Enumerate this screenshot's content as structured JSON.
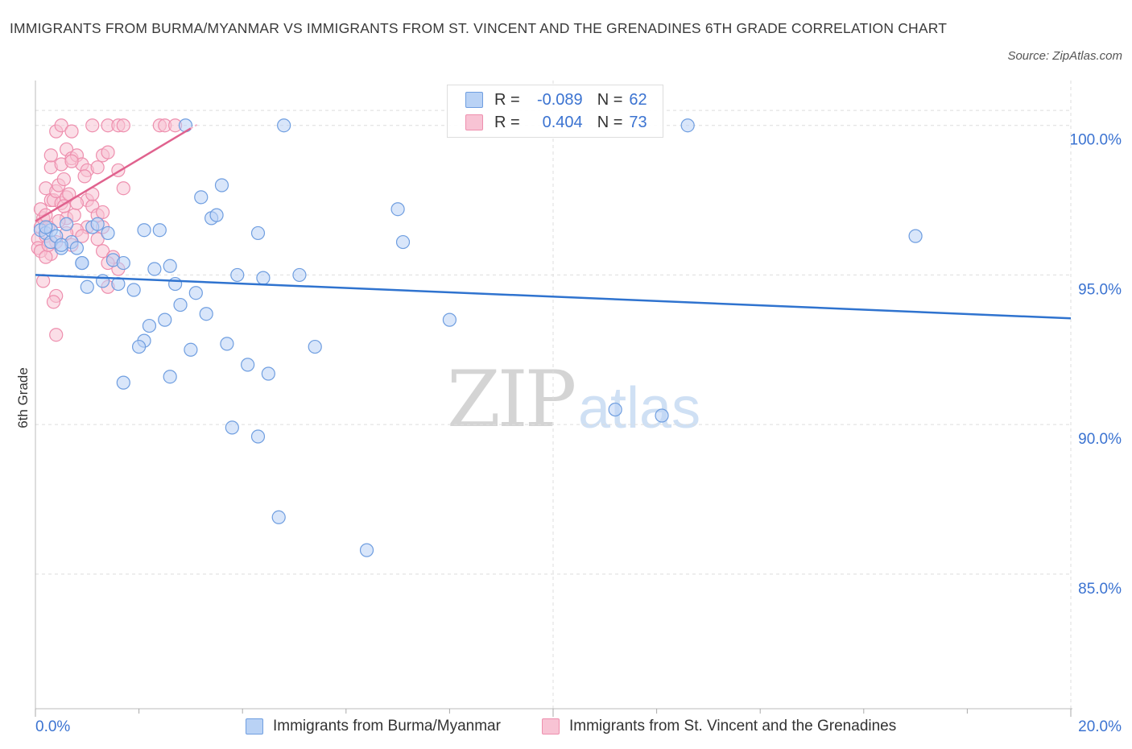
{
  "header": {
    "title": "IMMIGRANTS FROM BURMA/MYANMAR VS IMMIGRANTS FROM ST. VINCENT AND THE GRENADINES 6TH GRADE CORRELATION CHART",
    "source": "Source: ZipAtlas.com"
  },
  "watermark": {
    "zip": "ZIP",
    "atlas": "atlas"
  },
  "legend": {
    "rows": [
      {
        "r_label": "R =",
        "r_value": "-0.089",
        "n_label": "N =",
        "n_value": "62"
      },
      {
        "r_label": "R =",
        "r_value": "0.404",
        "n_label": "N =",
        "n_value": "73"
      }
    ]
  },
  "colors": {
    "blue_fill": "#b9d2f5",
    "blue_stroke": "#6f9ee0",
    "blue_line": "#2f73cf",
    "pink_fill": "#f8c3d4",
    "pink_stroke": "#ee8fae",
    "pink_line": "#e0628e",
    "axis_label": "#3b73d1",
    "grid": "#dddddd"
  },
  "chart_data": {
    "type": "scatter",
    "title": "IMMIGRANTS FROM BURMA/MYANMAR VS IMMIGRANTS FROM ST. VINCENT AND THE GRENADINES 6TH GRADE CORRELATION CHART",
    "ylabel": "6th Grade",
    "xlabel": "",
    "xlim": [
      0,
      20
    ],
    "ylim": [
      80.5,
      101.5
    ],
    "x_tick_labels": [
      "0.0%",
      "20.0%"
    ],
    "y_ticks": [
      85,
      90,
      95,
      100
    ],
    "y_tick_labels": [
      "85.0%",
      "90.0%",
      "95.0%",
      "100.0%"
    ],
    "grid": true,
    "legend_position": "top-center",
    "series": [
      {
        "name": "Immigrants from Burma/Myanmar",
        "color": "#6f9ee0",
        "trend": {
          "x": [
            0.0,
            20.0
          ],
          "y": [
            95.0,
            93.55
          ]
        },
        "points": [
          [
            0.1,
            96.5
          ],
          [
            0.2,
            96.4
          ],
          [
            0.3,
            96.1
          ],
          [
            0.5,
            95.9
          ],
          [
            0.7,
            96.1
          ],
          [
            0.9,
            95.4
          ],
          [
            1.1,
            96.6
          ],
          [
            1.4,
            96.4
          ],
          [
            1.5,
            95.5
          ],
          [
            1.7,
            95.4
          ],
          [
            1.0,
            94.6
          ],
          [
            1.3,
            94.8
          ],
          [
            1.6,
            94.7
          ],
          [
            1.9,
            94.5
          ],
          [
            0.6,
            96.7
          ],
          [
            0.8,
            95.9
          ],
          [
            2.1,
            96.5
          ],
          [
            2.4,
            96.5
          ],
          [
            2.3,
            95.2
          ],
          [
            2.6,
            95.3
          ],
          [
            2.7,
            94.7
          ],
          [
            2.2,
            93.3
          ],
          [
            2.5,
            93.5
          ],
          [
            2.8,
            94.0
          ],
          [
            3.1,
            94.4
          ],
          [
            3.3,
            93.7
          ],
          [
            2.1,
            92.8
          ],
          [
            2.0,
            92.6
          ],
          [
            3.0,
            92.5
          ],
          [
            3.7,
            92.7
          ],
          [
            4.1,
            92.0
          ],
          [
            4.5,
            91.7
          ],
          [
            1.7,
            91.4
          ],
          [
            2.6,
            91.6
          ],
          [
            3.2,
            97.6
          ],
          [
            3.6,
            98.0
          ],
          [
            3.4,
            96.9
          ],
          [
            3.5,
            97.0
          ],
          [
            4.3,
            96.4
          ],
          [
            3.9,
            95.0
          ],
          [
            4.4,
            94.9
          ],
          [
            5.1,
            95.0
          ],
          [
            5.4,
            92.6
          ],
          [
            3.8,
            89.9
          ],
          [
            4.3,
            89.6
          ],
          [
            4.7,
            86.9
          ],
          [
            6.4,
            85.8
          ],
          [
            7.0,
            97.2
          ],
          [
            7.1,
            96.1
          ],
          [
            8.0,
            93.5
          ],
          [
            11.2,
            90.5
          ],
          [
            12.1,
            90.3
          ],
          [
            17.0,
            96.3
          ],
          [
            12.6,
            100.0
          ],
          [
            4.8,
            100.0
          ],
          [
            2.9,
            100.0
          ],
          [
            0.3,
            96.5
          ],
          [
            0.4,
            96.3
          ],
          [
            0.5,
            96.0
          ],
          [
            1.2,
            96.7
          ],
          [
            0.9,
            95.4
          ],
          [
            0.2,
            96.6
          ]
        ]
      },
      {
        "name": "Immigrants from St. Vincent and the Grenadines",
        "color": "#ee8fae",
        "trend": {
          "x": [
            0.0,
            3.0
          ],
          "y": [
            96.8,
            99.9
          ]
        },
        "points": [
          [
            0.05,
            96.2
          ],
          [
            0.1,
            96.6
          ],
          [
            0.15,
            96.9
          ],
          [
            0.05,
            95.9
          ],
          [
            0.2,
            96.3
          ],
          [
            0.25,
            96.6
          ],
          [
            0.1,
            97.2
          ],
          [
            0.3,
            97.5
          ],
          [
            0.2,
            97.9
          ],
          [
            0.35,
            97.5
          ],
          [
            0.4,
            97.8
          ],
          [
            0.5,
            97.4
          ],
          [
            0.45,
            98.0
          ],
          [
            0.55,
            98.2
          ],
          [
            0.6,
            97.6
          ],
          [
            0.3,
            98.6
          ],
          [
            0.5,
            98.7
          ],
          [
            0.6,
            99.2
          ],
          [
            0.7,
            98.9
          ],
          [
            0.4,
            99.8
          ],
          [
            0.5,
            100.0
          ],
          [
            0.7,
            99.8
          ],
          [
            0.8,
            99.0
          ],
          [
            0.9,
            98.7
          ],
          [
            1.0,
            97.5
          ],
          [
            1.1,
            97.3
          ],
          [
            1.2,
            97.0
          ],
          [
            1.1,
            97.7
          ],
          [
            1.0,
            98.5
          ],
          [
            1.2,
            98.6
          ],
          [
            1.3,
            99.0
          ],
          [
            1.4,
            99.1
          ],
          [
            1.1,
            100.0
          ],
          [
            1.4,
            100.0
          ],
          [
            1.6,
            100.0
          ],
          [
            1.7,
            100.0
          ],
          [
            2.4,
            100.0
          ],
          [
            2.5,
            100.0
          ],
          [
            2.7,
            100.0
          ],
          [
            1.6,
            98.5
          ],
          [
            1.7,
            97.9
          ],
          [
            1.3,
            97.1
          ],
          [
            1.0,
            96.6
          ],
          [
            0.8,
            96.5
          ],
          [
            0.6,
            96.4
          ],
          [
            0.7,
            96.0
          ],
          [
            0.4,
            96.1
          ],
          [
            0.3,
            95.7
          ],
          [
            1.3,
            95.8
          ],
          [
            1.5,
            95.6
          ],
          [
            1.6,
            95.2
          ],
          [
            1.4,
            95.4
          ],
          [
            1.4,
            94.6
          ],
          [
            0.1,
            95.8
          ],
          [
            0.15,
            94.8
          ],
          [
            0.4,
            94.3
          ],
          [
            0.35,
            94.1
          ],
          [
            0.4,
            93.0
          ],
          [
            0.2,
            95.6
          ],
          [
            0.25,
            96.0
          ],
          [
            0.6,
            96.9
          ],
          [
            0.9,
            96.3
          ],
          [
            1.3,
            96.6
          ],
          [
            1.2,
            96.2
          ],
          [
            0.75,
            97.0
          ],
          [
            0.55,
            97.3
          ],
          [
            0.65,
            97.7
          ],
          [
            0.2,
            97.0
          ],
          [
            0.45,
            96.8
          ],
          [
            0.8,
            97.4
          ],
          [
            0.95,
            98.3
          ],
          [
            0.3,
            99.0
          ],
          [
            0.7,
            98.8
          ]
        ]
      }
    ]
  }
}
